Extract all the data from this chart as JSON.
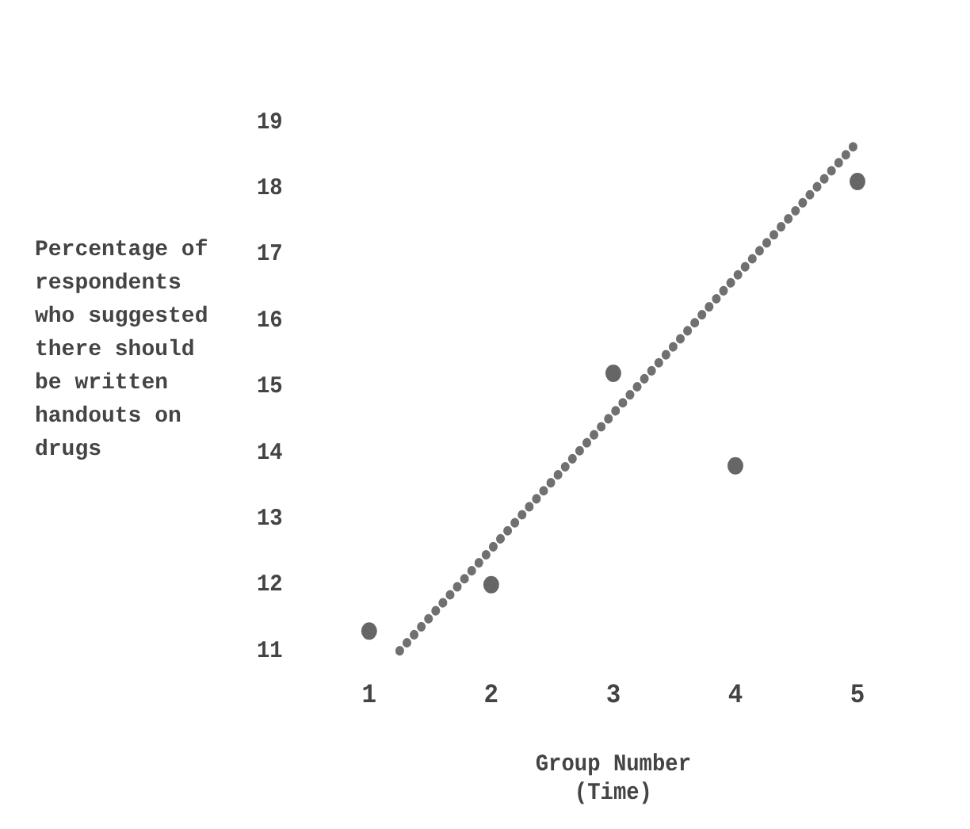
{
  "chart_data": {
    "type": "scatter",
    "ylabel": "Percentage of respondents who suggested there should be written handouts on drugs",
    "xlabel": "Group Number\n(Time)",
    "series": [
      {
        "color": "#666666",
        "x": [
          1,
          2,
          3,
          4,
          5
        ],
        "values": [
          11.3,
          12.0,
          15.2,
          13.8,
          18.1
        ],
        "marker": "circle"
      },
      {
        "type": "line",
        "color": "#707070",
        "x": [
          1.25,
          5
        ],
        "values": [
          11.0,
          18.7
        ],
        "line_style": "dotted",
        "marker": "none"
      }
    ],
    "xlim": [
      1,
      5
    ],
    "ylim": [
      11,
      19
    ],
    "xticks": [
      1,
      2,
      3,
      4,
      5
    ],
    "yticks": [
      11,
      12,
      13,
      14,
      15,
      16,
      17,
      18,
      19
    ],
    "grid": false,
    "legend": false
  }
}
